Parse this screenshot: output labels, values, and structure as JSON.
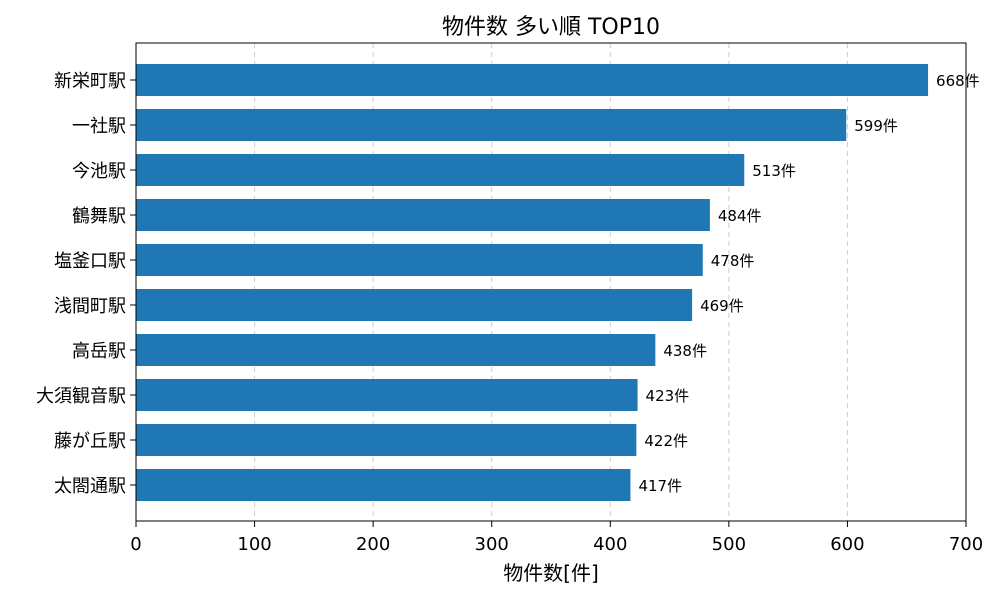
{
  "chart_data": {
    "type": "bar",
    "orientation": "horizontal",
    "title": "物件数 多い順 TOP10",
    "xlabel": "物件数[件]",
    "ylabel": "",
    "categories": [
      "新栄町駅",
      "一社駅",
      "今池駅",
      "鶴舞駅",
      "塩釜口駅",
      "浅間町駅",
      "高岳駅",
      "大須観音駅",
      "藤が丘駅",
      "太閤通駅"
    ],
    "values": [
      668,
      599,
      513,
      484,
      478,
      469,
      438,
      423,
      422,
      417
    ],
    "value_labels": [
      "668件",
      "599件",
      "513件",
      "484件",
      "478件",
      "469件",
      "438件",
      "423件",
      "422件",
      "417件"
    ],
    "xlim": [
      0,
      700
    ],
    "xticks": [
      0,
      100,
      200,
      300,
      400,
      500,
      600,
      700
    ],
    "xtick_labels": [
      "0",
      "100",
      "200",
      "300",
      "400",
      "500",
      "600",
      "700"
    ],
    "grid": {
      "x": true,
      "y": false,
      "style": "dashed"
    },
    "colors": {
      "bar": "#1f77b4",
      "grid": "#cccccc",
      "axis": "#000000",
      "background": "#ffffff"
    }
  }
}
